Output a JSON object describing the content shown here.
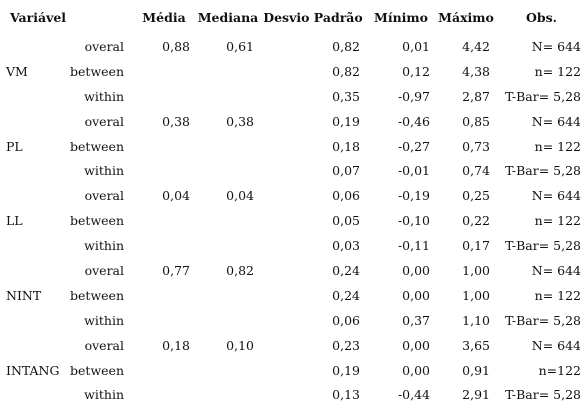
{
  "headers": [
    "Variável",
    "",
    "Média",
    "Mediana",
    "Desvio Padrão",
    "Mínimo",
    "Máximo",
    "Obs."
  ],
  "rows": [
    {
      "var": "",
      "type": "overal",
      "media": "0,88",
      "mediana": "0,61",
      "dp": "0,82",
      "min": "0,01",
      "max": "4,42",
      "obs": "N= 644"
    },
    {
      "var": "VM",
      "type": "between",
      "media": "",
      "mediana": "",
      "dp": "0,82",
      "min": "0,12",
      "max": "4,38",
      "obs": "n= 122"
    },
    {
      "var": "",
      "type": "within",
      "media": "",
      "mediana": "",
      "dp": "0,35",
      "min": "-0,97",
      "max": "2,87",
      "obs": "T-Bar= 5,28"
    },
    {
      "var": "",
      "type": "overal",
      "media": "0,38",
      "mediana": "0,38",
      "dp": "0,19",
      "min": "-0,46",
      "max": "0,85",
      "obs": "N= 644"
    },
    {
      "var": "PL",
      "type": "between",
      "media": "",
      "mediana": "",
      "dp": "0,18",
      "min": "-0,27",
      "max": "0,73",
      "obs": "n= 122"
    },
    {
      "var": "",
      "type": "within",
      "media": "",
      "mediana": "",
      "dp": "0,07",
      "min": "-0,01",
      "max": "0,74",
      "obs": "T-Bar= 5,28"
    },
    {
      "var": "",
      "type": "overal",
      "media": "0,04",
      "mediana": "0,04",
      "dp": "0,06",
      "min": "-0,19",
      "max": "0,25",
      "obs": "N= 644"
    },
    {
      "var": "LL",
      "type": "between",
      "media": "",
      "mediana": "",
      "dp": "0,05",
      "min": "-0,10",
      "max": "0,22",
      "obs": "n= 122"
    },
    {
      "var": "",
      "type": "within",
      "media": "",
      "mediana": "",
      "dp": "0,03",
      "min": "-0,11",
      "max": "0,17",
      "obs": "T-Bar= 5,28"
    },
    {
      "var": "",
      "type": "overal",
      "media": "0,77",
      "mediana": "0,82",
      "dp": "0,24",
      "min": "0,00",
      "max": "1,00",
      "obs": "N= 644"
    },
    {
      "var": "NINT",
      "type": "between",
      "media": "",
      "mediana": "",
      "dp": "0,24",
      "min": "0,00",
      "max": "1,00",
      "obs": "n= 122"
    },
    {
      "var": "",
      "type": "within",
      "media": "",
      "mediana": "",
      "dp": "0,06",
      "min": "0,37",
      "max": "1,10",
      "obs": "T-Bar= 5,28"
    },
    {
      "var": "",
      "type": "overal",
      "media": "0,18",
      "mediana": "0,10",
      "dp": "0,23",
      "min": "0,00",
      "max": "3,65",
      "obs": "N= 644"
    },
    {
      "var": "INTANG",
      "type": "between",
      "media": "",
      "mediana": "",
      "dp": "0,19",
      "min": "0,00",
      "max": "0,91",
      "obs": "n=122"
    },
    {
      "var": "",
      "type": "within",
      "media": "",
      "mediana": "",
      "dp": "0,13",
      "min": "-0,44",
      "max": "2,91",
      "obs": "T-Bar= 5,28"
    }
  ]
}
